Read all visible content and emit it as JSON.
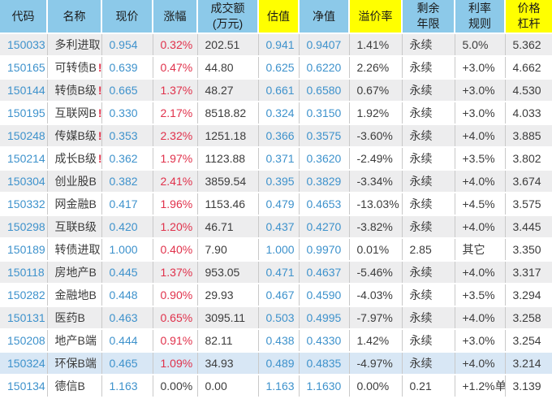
{
  "table": {
    "columns": [
      {
        "key": "code",
        "label": "代码",
        "header_bg": "blue"
      },
      {
        "key": "name",
        "label": "名称",
        "header_bg": "blue"
      },
      {
        "key": "price",
        "label": "现价",
        "header_bg": "blue"
      },
      {
        "key": "change",
        "label": "涨幅",
        "header_bg": "blue"
      },
      {
        "key": "turnover",
        "label": "成交额\n(万元)",
        "header_bg": "blue"
      },
      {
        "key": "est",
        "label": "估值",
        "header_bg": "yellow"
      },
      {
        "key": "nav",
        "label": "净值",
        "header_bg": "blue"
      },
      {
        "key": "premium",
        "label": "溢价率",
        "header_bg": "yellow"
      },
      {
        "key": "years",
        "label": "剩余\n年限",
        "header_bg": "blue"
      },
      {
        "key": "rate",
        "label": "利率\n规则",
        "header_bg": "blue"
      },
      {
        "key": "leverage",
        "label": "价格\n杠杆",
        "header_bg": "yellow"
      }
    ],
    "rows": [
      {
        "code": "150033",
        "name": "多利进取",
        "flag": "",
        "price": "0.954",
        "change": "0.32%",
        "turnover": "202.51",
        "est": "0.941",
        "nav": "0.9407",
        "premium": "1.41%",
        "years": "永续",
        "rate": "5.0%",
        "leverage": "5.362",
        "selected": false
      },
      {
        "code": "150165",
        "name": "可转债B",
        "flag": "!",
        "price": "0.639",
        "change": "0.47%",
        "turnover": "44.80",
        "est": "0.625",
        "nav": "0.6220",
        "premium": "2.26%",
        "years": "永续",
        "rate": "+3.0%",
        "leverage": "4.662",
        "selected": false
      },
      {
        "code": "150144",
        "name": "转债B级",
        "flag": "!",
        "price": "0.665",
        "change": "1.37%",
        "turnover": "48.27",
        "est": "0.661",
        "nav": "0.6580",
        "premium": "0.67%",
        "years": "永续",
        "rate": "+3.0%",
        "leverage": "4.530",
        "selected": false
      },
      {
        "code": "150195",
        "name": "互联网B",
        "flag": "!",
        "price": "0.330",
        "change": "2.17%",
        "turnover": "8518.82",
        "est": "0.324",
        "nav": "0.3150",
        "premium": "1.92%",
        "years": "永续",
        "rate": "+3.0%",
        "leverage": "4.033",
        "selected": false
      },
      {
        "code": "150248",
        "name": "传媒B级",
        "flag": "!",
        "price": "0.353",
        "change": "2.32%",
        "turnover": "1251.18",
        "est": "0.366",
        "nav": "0.3575",
        "premium": "-3.60%",
        "years": "永续",
        "rate": "+4.0%",
        "leverage": "3.885",
        "selected": false
      },
      {
        "code": "150214",
        "name": "成长B级",
        "flag": "!",
        "price": "0.362",
        "change": "1.97%",
        "turnover": "1123.88",
        "est": "0.371",
        "nav": "0.3620",
        "premium": "-2.49%",
        "years": "永续",
        "rate": "+3.5%",
        "leverage": "3.802",
        "selected": false
      },
      {
        "code": "150304",
        "name": "创业股B",
        "flag": "",
        "price": "0.382",
        "change": "2.41%",
        "turnover": "3859.54",
        "est": "0.395",
        "nav": "0.3829",
        "premium": "-3.34%",
        "years": "永续",
        "rate": "+4.0%",
        "leverage": "3.674",
        "selected": false
      },
      {
        "code": "150332",
        "name": "网金融B",
        "flag": "",
        "price": "0.417",
        "change": "1.96%",
        "turnover": "1153.46",
        "est": "0.479",
        "nav": "0.4653",
        "premium": "-13.03%",
        "years": "永续",
        "rate": "+4.5%",
        "leverage": "3.575",
        "selected": false
      },
      {
        "code": "150298",
        "name": "互联B级",
        "flag": "",
        "price": "0.420",
        "change": "1.20%",
        "turnover": "46.71",
        "est": "0.437",
        "nav": "0.4270",
        "premium": "-3.82%",
        "years": "永续",
        "rate": "+4.0%",
        "leverage": "3.445",
        "selected": false
      },
      {
        "code": "150189",
        "name": "转债进取",
        "flag": "",
        "price": "1.000",
        "change": "0.40%",
        "turnover": "7.90",
        "est": "1.000",
        "nav": "0.9970",
        "premium": "0.01%",
        "years": "2.85",
        "rate": "其它",
        "leverage": "3.350",
        "selected": false
      },
      {
        "code": "150118",
        "name": "房地产B",
        "flag": "",
        "price": "0.445",
        "change": "1.37%",
        "turnover": "953.05",
        "est": "0.471",
        "nav": "0.4637",
        "premium": "-5.46%",
        "years": "永续",
        "rate": "+4.0%",
        "leverage": "3.317",
        "selected": false
      },
      {
        "code": "150282",
        "name": "金融地B",
        "flag": "",
        "price": "0.448",
        "change": "0.90%",
        "turnover": "29.93",
        "est": "0.467",
        "nav": "0.4590",
        "premium": "-4.03%",
        "years": "永续",
        "rate": "+3.5%",
        "leverage": "3.294",
        "selected": false
      },
      {
        "code": "150131",
        "name": "医药B",
        "flag": "",
        "price": "0.463",
        "change": "0.65%",
        "turnover": "3095.11",
        "est": "0.503",
        "nav": "0.4995",
        "premium": "-7.97%",
        "years": "永续",
        "rate": "+4.0%",
        "leverage": "3.258",
        "selected": false
      },
      {
        "code": "150208",
        "name": "地产B端",
        "flag": "",
        "price": "0.444",
        "change": "0.91%",
        "turnover": "82.11",
        "est": "0.438",
        "nav": "0.4330",
        "premium": "1.42%",
        "years": "永续",
        "rate": "+3.0%",
        "leverage": "3.254",
        "selected": false
      },
      {
        "code": "150324",
        "name": "环保B端",
        "flag": "",
        "price": "0.465",
        "change": "1.09%",
        "turnover": "34.93",
        "est": "0.489",
        "nav": "0.4835",
        "premium": "-4.97%",
        "years": "永续",
        "rate": "+4.0%",
        "leverage": "3.214",
        "selected": true
      },
      {
        "code": "150134",
        "name": "德信B",
        "flag": "",
        "price": "1.163",
        "change": "0.00%",
        "turnover": "0.00",
        "est": "1.163",
        "nav": "1.1630",
        "premium": "0.00%",
        "years": "0.21",
        "rate": "+1.2%单",
        "leverage": "3.139",
        "selected": false
      }
    ],
    "colors": {
      "header_blue": "#8cc9e9",
      "header_yellow": "#ffff00",
      "value_blue": "#3e92cc",
      "value_red": "#e0314b",
      "value_dark": "#3c3c3c",
      "row_stripe": "#ededee",
      "row_selected": "#d8e7f5"
    }
  }
}
